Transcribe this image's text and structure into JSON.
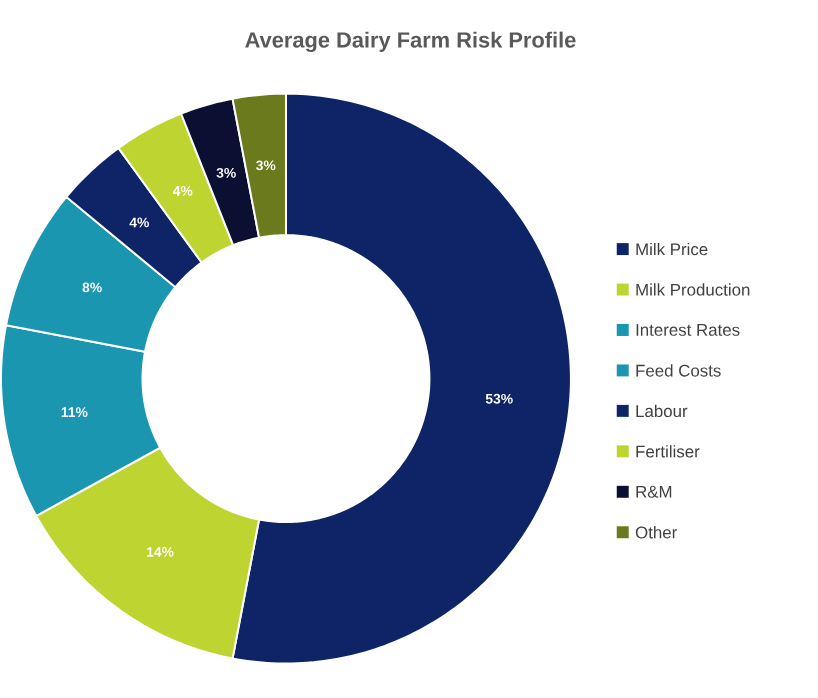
{
  "chart_data": {
    "type": "donut",
    "title": "Average Dairy Farm Risk Profile",
    "categories": [
      "Milk Price",
      "Milk Production",
      "Interest Rates",
      "Feed Costs",
      "Labour",
      "Fertiliser",
      "R&M",
      "Other"
    ],
    "values": [
      53,
      14,
      11,
      8,
      4,
      4,
      3,
      3
    ],
    "value_labels": [
      "53%",
      "14%",
      "11%",
      "8%",
      "4%",
      "4%",
      "3%",
      "3%"
    ],
    "colors": [
      "#0e2466",
      "#bed431",
      "#1a96b0",
      "#1a96b0",
      "#0e2466",
      "#bed431",
      "#0b1033",
      "#6b7a1c"
    ],
    "legend": "right"
  }
}
